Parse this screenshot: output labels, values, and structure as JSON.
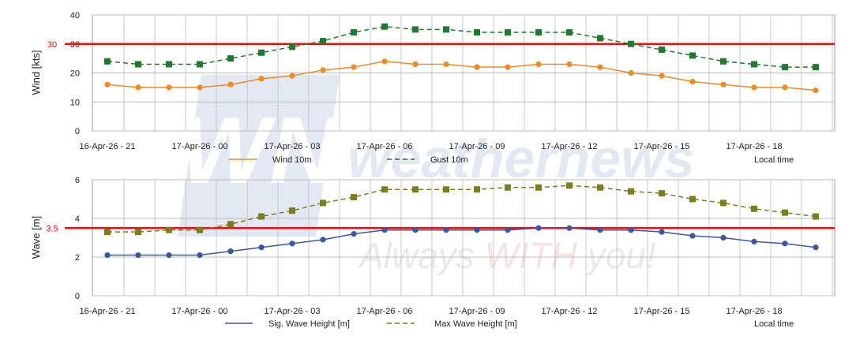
{
  "watermark": {
    "logo": "WN",
    "brand": "weathernews",
    "tagline_parts": [
      "Always ",
      "WITH",
      " you!"
    ]
  },
  "time_categories": [
    "16-Apr-26 - 21",
    "16-Apr-26 - 22",
    "16-Apr-26 - 23",
    "17-Apr-26 - 00",
    "17-Apr-26 - 01",
    "17-Apr-26 - 02",
    "17-Apr-26 - 03",
    "17-Apr-26 - 04",
    "17-Apr-26 - 05",
    "17-Apr-26 - 06",
    "17-Apr-26 - 07",
    "17-Apr-26 - 08",
    "17-Apr-26 - 09",
    "17-Apr-26 - 10",
    "17-Apr-26 - 11",
    "17-Apr-26 - 12",
    "17-Apr-26 - 13",
    "17-Apr-26 - 14",
    "17-Apr-26 - 15",
    "17-Apr-26 - 16",
    "17-Apr-26 - 17",
    "17-Apr-26 - 18",
    "17-Apr-26 - 19",
    "17-Apr-26 - 20"
  ],
  "chart_data": [
    {
      "type": "line",
      "ylabel": "Wind [kts]",
      "ylim": [
        0,
        40
      ],
      "yticks": [
        0,
        10,
        20,
        30,
        40
      ],
      "xtick_labels": [
        "16-Apr-26 - 21",
        "17-Apr-26 - 00",
        "17-Apr-26 - 03",
        "17-Apr-26 - 06",
        "17-Apr-26 - 09",
        "17-Apr-26 - 12",
        "17-Apr-26 - 15",
        "17-Apr-26 - 18"
      ],
      "grid": true,
      "legend_placement": "bottom",
      "legend_note": "Local time",
      "threshold": {
        "value": 30,
        "label": "30",
        "color": "#e81010"
      },
      "series": [
        {
          "name": "Wind 10m",
          "color": "#f08a24",
          "style": "solid",
          "marker": "circle",
          "values": [
            16,
            15,
            15,
            15,
            16,
            18,
            19,
            21,
            22,
            24,
            23,
            23,
            22,
            22,
            23,
            23,
            22,
            20,
            19,
            17,
            16,
            15,
            15,
            14
          ]
        },
        {
          "name": "Gust 10m",
          "color": "#1e7a2e",
          "style": "dashed",
          "marker": "square",
          "values": [
            24,
            23,
            23,
            23,
            25,
            27,
            29,
            31,
            34,
            36,
            35,
            35,
            34,
            34,
            34,
            34,
            32,
            30,
            28,
            26,
            24,
            23,
            22,
            22
          ]
        }
      ]
    },
    {
      "type": "line",
      "ylabel": "Wave [m]",
      "ylim": [
        0,
        6
      ],
      "yticks": [
        0,
        2,
        4,
        6
      ],
      "xtick_labels": [
        "16-Apr-26 - 21",
        "17-Apr-26 - 00",
        "17-Apr-26 - 03",
        "17-Apr-26 - 06",
        "17-Apr-26 - 09",
        "17-Apr-26 - 12",
        "17-Apr-26 - 15",
        "17-Apr-26 - 18"
      ],
      "grid": true,
      "legend_placement": "bottom",
      "legend_note": "Local time",
      "threshold": {
        "value": 3.5,
        "label": "3.5",
        "color": "#e81010"
      },
      "series": [
        {
          "name": "Sig. Wave Height [m]",
          "color": "#3a56a8",
          "style": "solid",
          "marker": "circle",
          "values": [
            2.1,
            2.1,
            2.1,
            2.1,
            2.3,
            2.5,
            2.7,
            2.9,
            3.2,
            3.4,
            3.4,
            3.4,
            3.4,
            3.4,
            3.5,
            3.5,
            3.4,
            3.4,
            3.3,
            3.1,
            3.0,
            2.8,
            2.7,
            2.5
          ]
        },
        {
          "name": "Max Wave Height [m]",
          "color": "#7d7d1e",
          "style": "dashed",
          "marker": "square",
          "values": [
            3.3,
            3.3,
            3.4,
            3.4,
            3.7,
            4.1,
            4.4,
            4.8,
            5.1,
            5.5,
            5.5,
            5.5,
            5.5,
            5.6,
            5.6,
            5.7,
            5.6,
            5.4,
            5.3,
            5.0,
            4.8,
            4.5,
            4.3,
            4.1
          ]
        }
      ]
    }
  ]
}
